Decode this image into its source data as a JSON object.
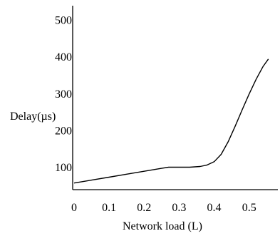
{
  "chart_data": {
    "type": "line",
    "title": "",
    "xlabel": "Network load (L)",
    "ylabel": "Delay(µs)",
    "xlim": [
      0,
      0.58
    ],
    "ylim": [
      40,
      540
    ],
    "x_ticks": [
      "0",
      "0.1",
      "0.2",
      "0.3",
      "0.4",
      "0.5"
    ],
    "y_ticks": [
      "100",
      "200",
      "300",
      "400",
      "500"
    ],
    "grid": false,
    "series": [
      {
        "x": [
          0,
          0.05,
          0.1,
          0.15,
          0.2,
          0.25,
          0.27,
          0.3,
          0.33,
          0.36,
          0.38,
          0.4,
          0.42,
          0.44,
          0.46,
          0.48,
          0.5,
          0.52,
          0.54,
          0.555
        ],
        "values": [
          58,
          66,
          74,
          82,
          90,
          98,
          101,
          101,
          101,
          103,
          107,
          116,
          136,
          170,
          212,
          257,
          300,
          340,
          375,
          395
        ]
      }
    ]
  }
}
